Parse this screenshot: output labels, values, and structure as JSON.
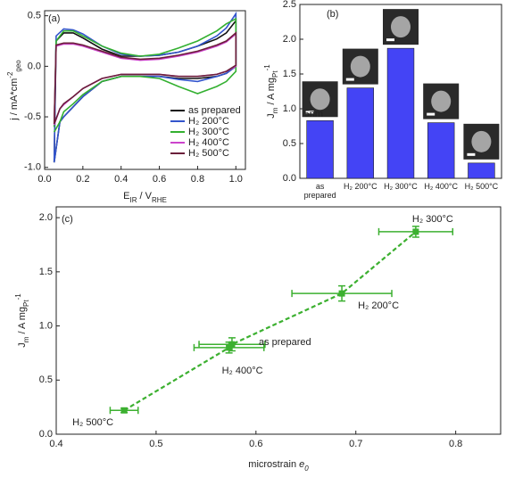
{
  "chart_data": [
    {
      "type": "line",
      "panel_label": "(a)",
      "x_label": [
        {
          "text": "E"
        },
        {
          "text": "IR",
          "sub": true
        },
        {
          "text": " / V"
        },
        {
          "text": "RHE",
          "sub": true
        }
      ],
      "y_label": [
        {
          "text": "j / mA*cm"
        },
        {
          "text": "-2",
          "sup": true
        },
        {
          "text": "geo",
          "sub": true
        }
      ],
      "x": [
        0.05,
        0.06,
        0.1,
        0.15,
        0.2,
        0.3,
        0.4,
        0.5,
        0.6,
        0.7,
        0.8,
        0.9,
        0.95,
        1.0,
        1.0,
        0.95,
        0.9,
        0.8,
        0.7,
        0.6,
        0.5,
        0.4,
        0.3,
        0.2,
        0.15,
        0.1,
        0.08,
        0.05
      ],
      "xlim": [
        0,
        1.05
      ],
      "xticks": [
        {
          "value": 0,
          "label": "0.0"
        },
        0.2,
        0.4,
        0.6,
        0.8,
        {
          "value": 1,
          "label": "1.0"
        }
      ],
      "ylim": [
        -1.02,
        0.55
      ],
      "yticks": [
        {
          "value": -1,
          "label": "-1.0"
        },
        -0.5,
        {
          "value": 0,
          "label": "0.0"
        },
        0.5
      ],
      "legend": "lower right",
      "series": [
        {
          "name": "as prepared",
          "color": "#111111",
          "values": [
            -0.95,
            0.25,
            0.33,
            0.33,
            0.28,
            0.17,
            0.1,
            0.1,
            0.11,
            0.14,
            0.2,
            0.27,
            0.33,
            0.45,
            0.0,
            -0.07,
            -0.1,
            -0.12,
            -0.12,
            -0.1,
            -0.1,
            -0.1,
            -0.15,
            -0.3,
            -0.4,
            -0.5,
            -0.55,
            -0.95
          ]
        },
        {
          "name": "H₂ 200°C",
          "color": "#3355cc",
          "values": [
            -0.95,
            0.3,
            0.37,
            0.36,
            0.32,
            0.2,
            0.12,
            0.1,
            0.11,
            0.14,
            0.2,
            0.3,
            0.38,
            0.52,
            0.0,
            -0.07,
            -0.1,
            -0.15,
            -0.13,
            -0.1,
            -0.1,
            -0.1,
            -0.15,
            -0.3,
            -0.4,
            -0.5,
            -0.55,
            -0.95
          ]
        },
        {
          "name": "H₂ 300°C",
          "color": "#33b030",
          "values": [
            -0.6,
            0.25,
            0.35,
            0.35,
            0.3,
            0.2,
            0.13,
            0.1,
            0.12,
            0.18,
            0.25,
            0.35,
            0.42,
            0.47,
            -0.05,
            -0.15,
            -0.2,
            -0.27,
            -0.2,
            -0.12,
            -0.1,
            -0.1,
            -0.15,
            -0.28,
            -0.37,
            -0.45,
            -0.55,
            -0.65
          ]
        },
        {
          "name": "H₂ 400°C",
          "color": "#cc44cc",
          "values": [
            -0.58,
            0.2,
            0.22,
            0.22,
            0.2,
            0.14,
            0.08,
            0.06,
            0.07,
            0.1,
            0.14,
            0.2,
            0.24,
            0.32,
            0.0,
            -0.05,
            -0.08,
            -0.1,
            -0.1,
            -0.08,
            -0.08,
            -0.08,
            -0.12,
            -0.22,
            -0.3,
            -0.38,
            -0.42,
            -0.58
          ]
        },
        {
          "name": "H₂ 500°C",
          "color": "#6b1f3a",
          "values": [
            -0.57,
            0.21,
            0.23,
            0.23,
            0.21,
            0.15,
            0.09,
            0.07,
            0.08,
            0.11,
            0.15,
            0.21,
            0.25,
            0.33,
            0.01,
            -0.05,
            -0.08,
            -0.1,
            -0.1,
            -0.08,
            -0.08,
            -0.08,
            -0.12,
            -0.22,
            -0.3,
            -0.37,
            -0.42,
            -0.57
          ]
        }
      ]
    },
    {
      "type": "bar",
      "panel_label": "(b)",
      "y_label": [
        {
          "text": "J"
        },
        {
          "text": "m",
          "sub": true
        },
        {
          "text": " / A mg"
        },
        {
          "text": "Pt",
          "sub": true
        },
        {
          "text": "-1",
          "sup": true
        }
      ],
      "categories": [
        "as prepared",
        "H₂ 200°C",
        "H₂ 300°C",
        "H₂ 400°C",
        "H₂ 500°C"
      ],
      "values": [
        0.83,
        1.3,
        1.87,
        0.8,
        0.22
      ],
      "color": "#4444f5",
      "scale_label": "5nm",
      "ylim": [
        0,
        2.5
      ],
      "yticks": [
        {
          "value": 0,
          "label": "0.0"
        },
        0.5,
        {
          "value": 1,
          "label": "1.0"
        },
        1.5,
        {
          "value": 2,
          "label": "2.0"
        },
        2.5
      ]
    },
    {
      "type": "scatter",
      "panel_label": "(c)",
      "x_label": [
        {
          "text": "microstrain "
        },
        {
          "text": "e",
          "italic": true
        },
        {
          "text": "0",
          "sub": true,
          "italic": true
        }
      ],
      "y_label": [
        {
          "text": "J"
        },
        {
          "text": "m",
          "sub": true
        },
        {
          "text": " / A mg"
        },
        {
          "text": "Pt",
          "sub": true
        },
        {
          "text": "-1",
          "sup": true
        }
      ],
      "labels": [
        "H₂ 500°C",
        "H₂ 400°C",
        "as prepared",
        "H₂ 200°C",
        "H₂ 300°C"
      ],
      "x": [
        0.468,
        0.573,
        0.576,
        0.686,
        0.76
      ],
      "xerr": [
        0.014,
        0.035,
        0.033,
        0.05,
        0.037
      ],
      "values": [
        0.22,
        0.8,
        0.83,
        1.3,
        1.87
      ],
      "yerr": [
        0.02,
        0.05,
        0.06,
        0.07,
        0.05
      ],
      "color": "#3cb030",
      "xlim": [
        0.4,
        0.845
      ],
      "xticks": [
        0.4,
        0.5,
        0.6,
        0.7,
        0.8
      ],
      "ylim": [
        0,
        2.1
      ],
      "yticks": [
        {
          "value": 0,
          "label": "0.0"
        },
        0.5,
        {
          "value": 1,
          "label": "1.0"
        },
        1.5,
        {
          "value": 2,
          "label": "2.0"
        }
      ]
    }
  ]
}
